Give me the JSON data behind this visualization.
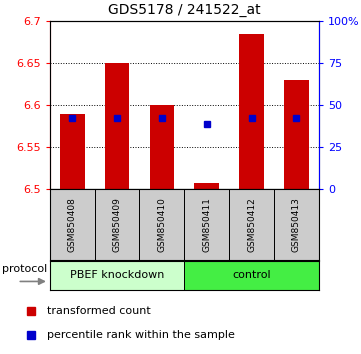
{
  "title": "GDS5178 / 241522_at",
  "samples": [
    "GSM850408",
    "GSM850409",
    "GSM850410",
    "GSM850411",
    "GSM850412",
    "GSM850413"
  ],
  "bar_bottoms": [
    6.5,
    6.5,
    6.5,
    6.5,
    6.5,
    6.5
  ],
  "bar_tops": [
    6.59,
    6.65,
    6.6,
    6.508,
    6.685,
    6.63
  ],
  "blue_vals": [
    6.585,
    6.585,
    6.585,
    6.578,
    6.585,
    6.585
  ],
  "bar_color": "#cc0000",
  "blue_color": "#0000cc",
  "ylim": [
    6.5,
    6.7
  ],
  "yticks_left": [
    6.5,
    6.55,
    6.6,
    6.65,
    6.7
  ],
  "yticks_right": [
    0,
    25,
    50,
    75,
    100
  ],
  "group_band_color_1": "#ccffcc",
  "group_band_color_2": "#44ee44",
  "sample_band_color": "#cccccc",
  "bg_color": "#ffffff"
}
